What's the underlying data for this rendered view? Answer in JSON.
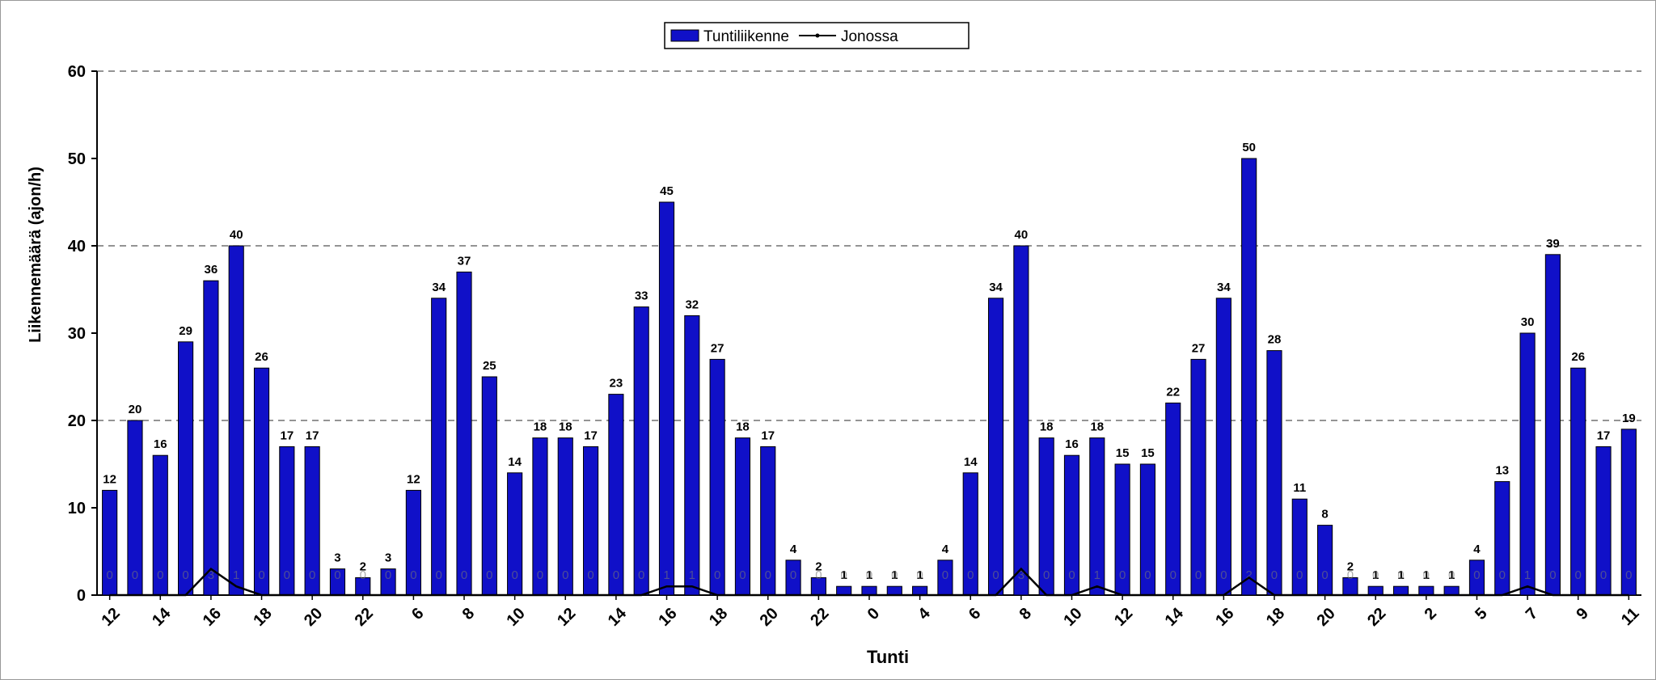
{
  "chart_data": {
    "type": "bar",
    "xlabel": "Tunti",
    "ylabel": "Liikennemäärä (ajon/h)",
    "categories": [
      "12",
      null,
      "14",
      null,
      "16",
      null,
      "18",
      null,
      "20",
      null,
      "22",
      null,
      "6",
      null,
      "8",
      null,
      "10",
      null,
      "12",
      null,
      "14",
      null,
      "16",
      null,
      "18",
      null,
      "20",
      null,
      "22",
      null,
      "0",
      null,
      "4",
      null,
      "6",
      null,
      "8",
      null,
      "10",
      null,
      "12",
      null,
      "14",
      null,
      "16",
      null,
      "18",
      null,
      "20",
      null,
      "22",
      null,
      "2",
      null,
      "5",
      null,
      "7",
      null,
      "9",
      null,
      "11"
    ],
    "series": [
      {
        "name": "Tuntiliikenne",
        "type": "bar",
        "color": "#1010c8",
        "values": [
          12,
          20,
          16,
          29,
          36,
          40,
          26,
          17,
          17,
          3,
          2,
          3,
          12,
          34,
          37,
          25,
          14,
          18,
          18,
          17,
          23,
          33,
          45,
          32,
          27,
          18,
          17,
          4,
          2,
          1,
          1,
          1,
          1,
          4,
          14,
          34,
          40,
          18,
          16,
          18,
          15,
          15,
          22,
          27,
          34,
          50,
          28,
          11,
          8,
          2,
          1,
          1,
          1,
          1,
          4,
          13,
          30,
          39,
          26,
          17,
          19
        ]
      },
      {
        "name": "Jonossa",
        "type": "line",
        "color": "#000000",
        "values": [
          0,
          0,
          0,
          0,
          3,
          1,
          0,
          0,
          0,
          0,
          0,
          0,
          0,
          0,
          0,
          0,
          0,
          0,
          0,
          0,
          0,
          0,
          1,
          1,
          0,
          0,
          0,
          0,
          0,
          0,
          0,
          0,
          0,
          0,
          0,
          0,
          3,
          0,
          0,
          1,
          0,
          0,
          0,
          0,
          0,
          2,
          0,
          0,
          0,
          0,
          0,
          0,
          0,
          0,
          0,
          0,
          1,
          0,
          0,
          0,
          0
        ]
      }
    ],
    "ylim": [
      0,
      60
    ],
    "yticks": [
      0,
      10,
      20,
      30,
      40,
      50,
      60
    ],
    "grid_values": [
      20,
      40,
      60
    ],
    "legend": "top"
  }
}
